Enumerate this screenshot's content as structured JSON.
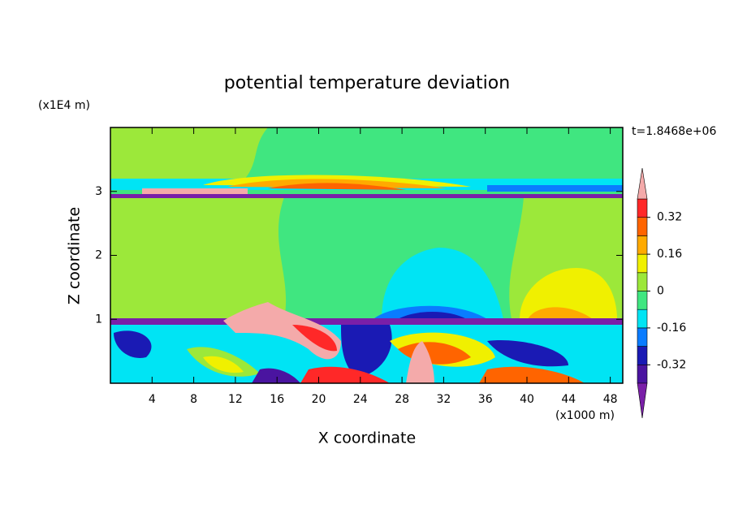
{
  "chart_data": {
    "type": "contour",
    "title": "potential temperature deviation",
    "x_label": "X coordinate",
    "y_label": "Z coordinate",
    "x_unit": "(x1000 m)",
    "y_unit": "(x1E4 m)",
    "annotation": "t=1.8468e+06",
    "xlim": [
      0,
      49.2
    ],
    "ylim": [
      0,
      4
    ],
    "xticks": [
      4,
      8,
      12,
      16,
      20,
      24,
      28,
      32,
      36,
      40,
      44,
      48
    ],
    "yticks": [
      1,
      2,
      3
    ],
    "colorbar": {
      "levels": [
        -0.4,
        -0.32,
        -0.24,
        -0.16,
        -0.08,
        0,
        0.08,
        0.16,
        0.24,
        0.32,
        0.4
      ],
      "colors": [
        "#7a1fa8",
        "#4a14a0",
        "#1a1ab4",
        "#0a7cff",
        "#00e4f4",
        "#40e680",
        "#9ce83a",
        "#f0f000",
        "#ffaa00",
        "#ff6400",
        "#ff2828",
        "#f4aaaa"
      ],
      "ticks": [
        -0.32,
        -0.16,
        0,
        0.16,
        0.32
      ]
    }
  }
}
